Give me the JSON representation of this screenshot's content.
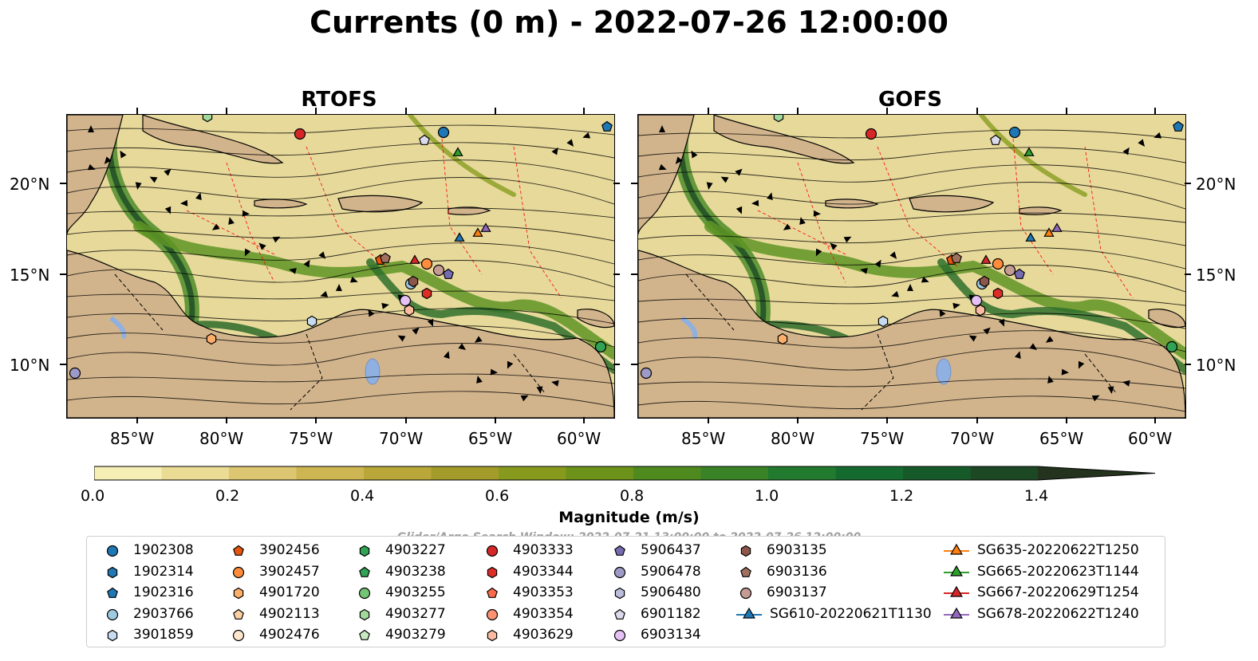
{
  "title": "Currents (0 m) - 2022-07-26 12:00:00",
  "panels": [
    {
      "title": "RTOFS"
    },
    {
      "title": "GOFS"
    }
  ],
  "axes": {
    "lon_ticks": [
      "85°W",
      "80°W",
      "75°W",
      "70°W",
      "65°W",
      "60°W"
    ],
    "lat_ticks": [
      "20°N",
      "15°N",
      "10°N"
    ]
  },
  "colorbar": {
    "label": "Magnitude (m/s)",
    "ticks": [
      "0.0",
      "0.2",
      "0.4",
      "0.6",
      "0.8",
      "1.0",
      "1.2",
      "1.4"
    ],
    "colors": [
      "#f6efb5",
      "#ebdc95",
      "#dcc671",
      "#cdb652",
      "#b9a73a",
      "#a39c2a",
      "#889a1e",
      "#6c9219",
      "#4f8a1f",
      "#3a8226",
      "#217a2e",
      "#156b2f",
      "#175a2a",
      "#1d4824",
      "#23331d"
    ]
  },
  "search_window": "Glider/Argo Search Window: 2022-07-21 13:00:00 to 2022-07-26 12:00:00",
  "legend": [
    {
      "label": "1902308",
      "marker": "circle",
      "color": "#1f77b4"
    },
    {
      "label": "1902314",
      "marker": "hexagon",
      "color": "#1f77b4"
    },
    {
      "label": "1902316",
      "marker": "pentagon",
      "color": "#1f77b4"
    },
    {
      "label": "2903766",
      "marker": "circle",
      "color": "#9ecae1"
    },
    {
      "label": "3901859",
      "marker": "hexagon",
      "color": "#c6dbef"
    },
    {
      "label": "3902456",
      "marker": "pentagon",
      "color": "#e6550d"
    },
    {
      "label": "3902457",
      "marker": "circle",
      "color": "#fd8d3c"
    },
    {
      "label": "4901720",
      "marker": "hexagon",
      "color": "#fdae6b"
    },
    {
      "label": "4902113",
      "marker": "pentagon",
      "color": "#fdd0a2"
    },
    {
      "label": "4902476",
      "marker": "circle",
      "color": "#fee6ce"
    },
    {
      "label": "4903227",
      "marker": "hexagon",
      "color": "#31a354"
    },
    {
      "label": "4903238",
      "marker": "pentagon",
      "color": "#31a354"
    },
    {
      "label": "4903255",
      "marker": "circle",
      "color": "#74c476"
    },
    {
      "label": "4903277",
      "marker": "hexagon",
      "color": "#a1d99b"
    },
    {
      "label": "4903279",
      "marker": "pentagon",
      "color": "#c7e9c0"
    },
    {
      "label": "4903333",
      "marker": "circle",
      "color": "#d62728"
    },
    {
      "label": "4903344",
      "marker": "hexagon",
      "color": "#de2d26"
    },
    {
      "label": "4903353",
      "marker": "pentagon",
      "color": "#fb6a4a"
    },
    {
      "label": "4903354",
      "marker": "circle",
      "color": "#fc9272"
    },
    {
      "label": "4903629",
      "marker": "hexagon",
      "color": "#fcbba1"
    },
    {
      "label": "5906437",
      "marker": "pentagon",
      "color": "#756bb1"
    },
    {
      "label": "5906478",
      "marker": "circle",
      "color": "#9e9ac8"
    },
    {
      "label": "5906480",
      "marker": "hexagon",
      "color": "#bcbddc"
    },
    {
      "label": "6901182",
      "marker": "pentagon",
      "color": "#dadaeb"
    },
    {
      "label": "6903134",
      "marker": "circle",
      "color": "#e5c1f5"
    },
    {
      "label": "6903135",
      "marker": "hexagon",
      "color": "#8c564b"
    },
    {
      "label": "6903136",
      "marker": "pentagon",
      "color": "#a0705f"
    },
    {
      "label": "6903137",
      "marker": "circle",
      "color": "#c49c94"
    },
    {
      "label": "SG610-20220621T1130",
      "marker": "triangle",
      "color": "#1f77b4"
    },
    {
      "label": "SG635-20220622T1250",
      "marker": "triangle",
      "color": "#ff7f0e"
    },
    {
      "label": "SG665-20220623T1144",
      "marker": "triangle",
      "color": "#2ca02c"
    },
    {
      "label": "SG667-20220629T1254",
      "marker": "triangle",
      "color": "#d62728"
    },
    {
      "label": "SG678-20220622T1240",
      "marker": "triangle",
      "color": "#9467bd"
    }
  ],
  "colors": {
    "land": "#d2b48c",
    "lake": "#8fb0e0",
    "coast": "#000000",
    "eez": "#ff0000"
  }
}
